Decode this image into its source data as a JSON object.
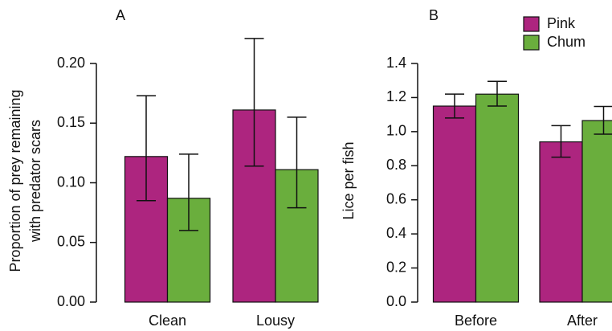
{
  "chart_data": [
    {
      "type": "bar",
      "title": "A",
      "ylabel": [
        "Proportion of prey remaining",
        "with predator scars"
      ],
      "categories": [
        "Clean",
        "Lousy"
      ],
      "series": [
        {
          "color": "#ad257f",
          "values": [
            0.122,
            0.161
          ],
          "lower": [
            0.085,
            0.114
          ],
          "upper": [
            0.173,
            0.221
          ]
        },
        {
          "color": "#6aae3d",
          "values": [
            0.087,
            0.111
          ],
          "lower": [
            0.06,
            0.079
          ],
          "upper": [
            0.124,
            0.155
          ]
        }
      ],
      "ylim": [
        0,
        0.2
      ],
      "yticks": [
        {
          "value": 0,
          "label": "0.00"
        },
        {
          "value": 0.05,
          "label": "0.05"
        },
        {
          "value": 0.1,
          "label": "0.10"
        },
        {
          "value": 0.15,
          "label": "0.15"
        },
        {
          "value": 0.2,
          "label": "0.20"
        }
      ]
    },
    {
      "type": "bar",
      "title": "B",
      "ylabel": [
        "Lice per fish"
      ],
      "categories": [
        "Before",
        "After"
      ],
      "series": [
        {
          "name": "Pink",
          "color": "#ad257f",
          "values": [
            1.15,
            0.94
          ],
          "lower": [
            1.08,
            0.85
          ],
          "upper": [
            1.22,
            1.035
          ]
        },
        {
          "name": "Chum",
          "color": "#6aae3d",
          "values": [
            1.22,
            1.065
          ],
          "lower": [
            1.15,
            0.985
          ],
          "upper": [
            1.295,
            1.148
          ]
        }
      ],
      "ylim": [
        0,
        1.4
      ],
      "yticks": [
        {
          "value": 0,
          "label": "0.0"
        },
        {
          "value": 0.2,
          "label": "0.2"
        },
        {
          "value": 0.4,
          "label": "0.4"
        },
        {
          "value": 0.6,
          "label": "0.6"
        },
        {
          "value": 0.8,
          "label": "0.8"
        },
        {
          "value": 1,
          "label": "1.0"
        },
        {
          "value": 1.2,
          "label": "1.2"
        },
        {
          "value": 1.4,
          "label": "1.4"
        }
      ],
      "legend": "top-right"
    }
  ]
}
